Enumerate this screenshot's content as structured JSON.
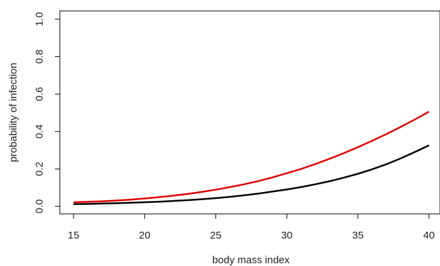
{
  "chart_data": {
    "type": "line",
    "xlabel": "body mass index",
    "ylabel": "probability of infection",
    "xlim": [
      15,
      40
    ],
    "ylim": [
      0,
      1
    ],
    "x_ticks": [
      "15",
      "20",
      "25",
      "30",
      "35",
      "40"
    ],
    "y_ticks": [
      "0.0",
      "0.2",
      "0.4",
      "0.6",
      "0.8",
      "1.0"
    ],
    "grid": false,
    "legend": "none",
    "x": [
      15,
      16,
      17,
      18,
      19,
      20,
      21,
      22,
      23,
      24,
      25,
      26,
      27,
      28,
      29,
      30,
      31,
      32,
      33,
      34,
      35,
      36,
      37,
      38,
      39,
      40
    ],
    "series": [
      {
        "color": "#e00000",
        "values": [
          0.022,
          0.024,
          0.027,
          0.031,
          0.036,
          0.042,
          0.049,
          0.057,
          0.066,
          0.077,
          0.089,
          0.103,
          0.118,
          0.135,
          0.155,
          0.177,
          0.2,
          0.226,
          0.254,
          0.284,
          0.316,
          0.35,
          0.386,
          0.424,
          0.464,
          0.506
        ]
      },
      {
        "color": "#000000",
        "values": [
          0.012,
          0.013,
          0.015,
          0.017,
          0.019,
          0.022,
          0.025,
          0.029,
          0.033,
          0.038,
          0.044,
          0.051,
          0.059,
          0.068,
          0.079,
          0.09,
          0.103,
          0.118,
          0.134,
          0.153,
          0.174,
          0.198,
          0.225,
          0.256,
          0.29,
          0.326
        ]
      }
    ]
  }
}
